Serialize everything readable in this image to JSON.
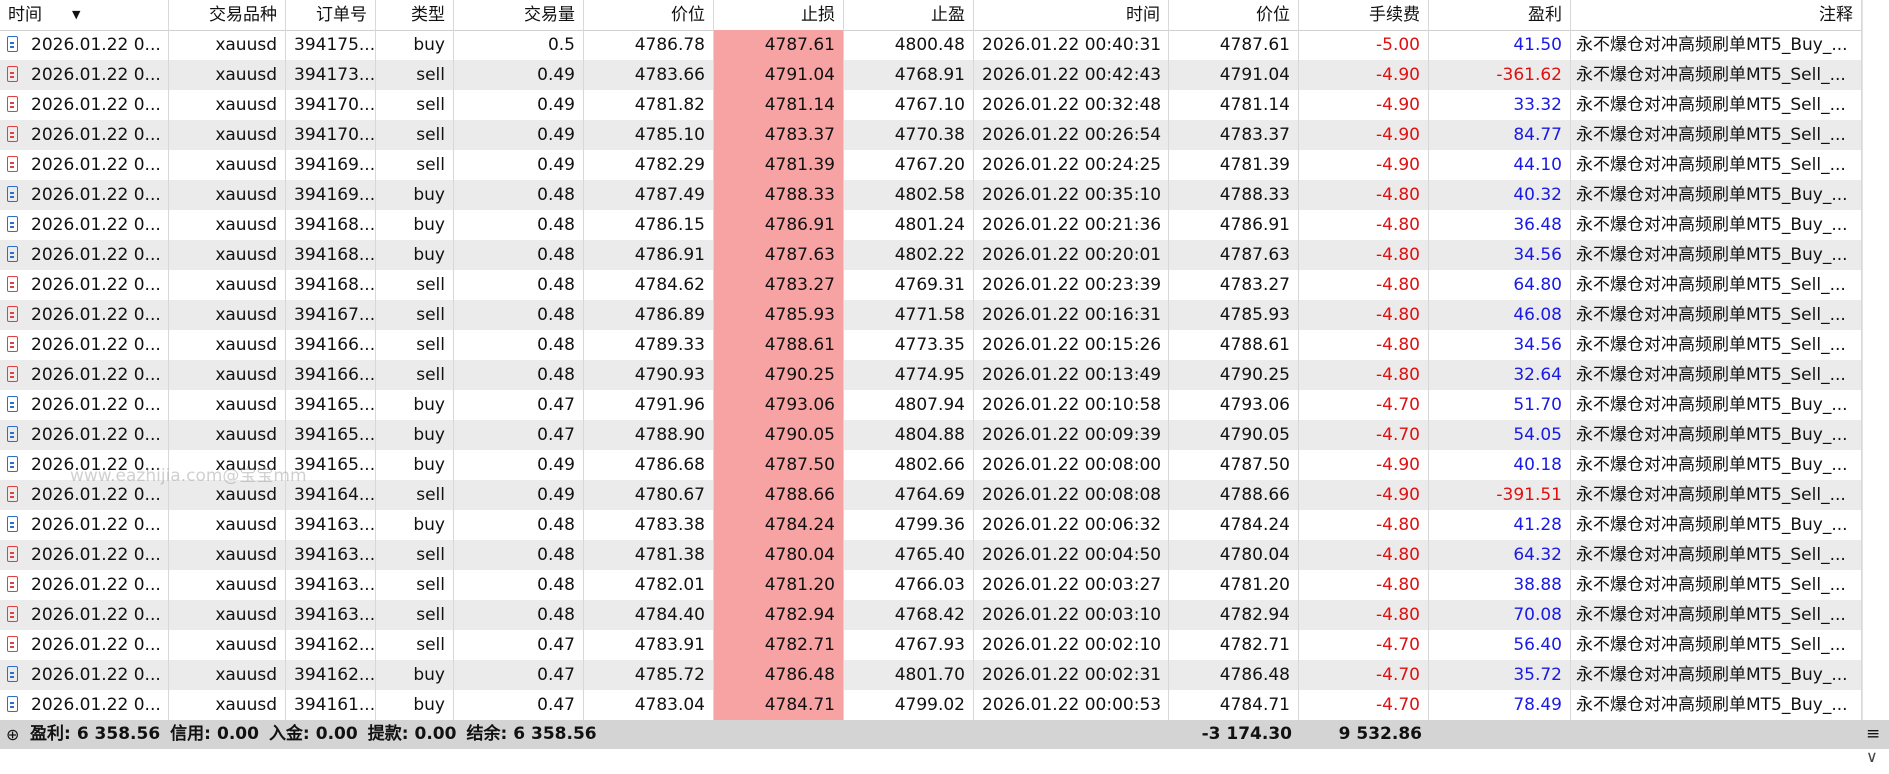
{
  "header": [
    "时间",
    "交易品种",
    "订单号",
    "类型",
    "交易量",
    "价位",
    "止损",
    "止盈",
    "时间",
    "价位",
    "手续费",
    "盈利",
    "注释"
  ],
  "rows": [
    [
      "2026.01.22 0...",
      "xauusd",
      "394175...",
      "buy",
      "0.5",
      "4786.78",
      "4787.61",
      "4800.48",
      "2026.01.22 00:40:31",
      "4787.61",
      "-5.00",
      "41.50",
      "永不爆仓对冲高频刷单MT5_Buy_..."
    ],
    [
      "2026.01.22 0...",
      "xauusd",
      "394173...",
      "sell",
      "0.49",
      "4783.66",
      "4791.04",
      "4768.91",
      "2026.01.22 00:42:43",
      "4791.04",
      "-4.90",
      "-361.62",
      "永不爆仓对冲高频刷单MT5_Sell_..."
    ],
    [
      "2026.01.22 0...",
      "xauusd",
      "394170...",
      "sell",
      "0.49",
      "4781.82",
      "4781.14",
      "4767.10",
      "2026.01.22 00:32:48",
      "4781.14",
      "-4.90",
      "33.32",
      "永不爆仓对冲高频刷单MT5_Sell_..."
    ],
    [
      "2026.01.22 0...",
      "xauusd",
      "394170...",
      "sell",
      "0.49",
      "4785.10",
      "4783.37",
      "4770.38",
      "2026.01.22 00:26:54",
      "4783.37",
      "-4.90",
      "84.77",
      "永不爆仓对冲高频刷单MT5_Sell_..."
    ],
    [
      "2026.01.22 0...",
      "xauusd",
      "394169...",
      "sell",
      "0.49",
      "4782.29",
      "4781.39",
      "4767.20",
      "2026.01.22 00:24:25",
      "4781.39",
      "-4.90",
      "44.10",
      "永不爆仓对冲高频刷单MT5_Sell_..."
    ],
    [
      "2026.01.22 0...",
      "xauusd",
      "394169...",
      "buy",
      "0.48",
      "4787.49",
      "4788.33",
      "4802.58",
      "2026.01.22 00:35:10",
      "4788.33",
      "-4.80",
      "40.32",
      "永不爆仓对冲高频刷单MT5_Buy_..."
    ],
    [
      "2026.01.22 0...",
      "xauusd",
      "394168...",
      "buy",
      "0.48",
      "4786.15",
      "4786.91",
      "4801.24",
      "2026.01.22 00:21:36",
      "4786.91",
      "-4.80",
      "36.48",
      "永不爆仓对冲高频刷单MT5_Buy_..."
    ],
    [
      "2026.01.22 0...",
      "xauusd",
      "394168...",
      "buy",
      "0.48",
      "4786.91",
      "4787.63",
      "4802.22",
      "2026.01.22 00:20:01",
      "4787.63",
      "-4.80",
      "34.56",
      "永不爆仓对冲高频刷单MT5_Buy_..."
    ],
    [
      "2026.01.22 0...",
      "xauusd",
      "394168...",
      "sell",
      "0.48",
      "4784.62",
      "4783.27",
      "4769.31",
      "2026.01.22 00:23:39",
      "4783.27",
      "-4.80",
      "64.80",
      "永不爆仓对冲高频刷单MT5_Sell_..."
    ],
    [
      "2026.01.22 0...",
      "xauusd",
      "394167...",
      "sell",
      "0.48",
      "4786.89",
      "4785.93",
      "4771.58",
      "2026.01.22 00:16:31",
      "4785.93",
      "-4.80",
      "46.08",
      "永不爆仓对冲高频刷单MT5_Sell_..."
    ],
    [
      "2026.01.22 0...",
      "xauusd",
      "394166...",
      "sell",
      "0.48",
      "4789.33",
      "4788.61",
      "4773.35",
      "2026.01.22 00:15:26",
      "4788.61",
      "-4.80",
      "34.56",
      "永不爆仓对冲高频刷单MT5_Sell_..."
    ],
    [
      "2026.01.22 0...",
      "xauusd",
      "394166...",
      "sell",
      "0.48",
      "4790.93",
      "4790.25",
      "4774.95",
      "2026.01.22 00:13:49",
      "4790.25",
      "-4.80",
      "32.64",
      "永不爆仓对冲高频刷单MT5_Sell_..."
    ],
    [
      "2026.01.22 0...",
      "xauusd",
      "394165...",
      "buy",
      "0.47",
      "4791.96",
      "4793.06",
      "4807.94",
      "2026.01.22 00:10:58",
      "4793.06",
      "-4.70",
      "51.70",
      "永不爆仓对冲高频刷单MT5_Buy_..."
    ],
    [
      "2026.01.22 0...",
      "xauusd",
      "394165...",
      "buy",
      "0.47",
      "4788.90",
      "4790.05",
      "4804.88",
      "2026.01.22 00:09:39",
      "4790.05",
      "-4.70",
      "54.05",
      "永不爆仓对冲高频刷单MT5_Buy_..."
    ],
    [
      "2026.01.22 0...",
      "xauusd",
      "394165...",
      "buy",
      "0.49",
      "4786.68",
      "4787.50",
      "4802.66",
      "2026.01.22 00:08:00",
      "4787.50",
      "-4.90",
      "40.18",
      "永不爆仓对冲高频刷单MT5_Buy_..."
    ],
    [
      "2026.01.22 0...",
      "xauusd",
      "394164...",
      "sell",
      "0.49",
      "4780.67",
      "4788.66",
      "4764.69",
      "2026.01.22 00:08:08",
      "4788.66",
      "-4.90",
      "-391.51",
      "永不爆仓对冲高频刷单MT5_Sell_..."
    ],
    [
      "2026.01.22 0...",
      "xauusd",
      "394163...",
      "buy",
      "0.48",
      "4783.38",
      "4784.24",
      "4799.36",
      "2026.01.22 00:06:32",
      "4784.24",
      "-4.80",
      "41.28",
      "永不爆仓对冲高频刷单MT5_Buy_..."
    ],
    [
      "2026.01.22 0...",
      "xauusd",
      "394163...",
      "sell",
      "0.48",
      "4781.38",
      "4780.04",
      "4765.40",
      "2026.01.22 00:04:50",
      "4780.04",
      "-4.80",
      "64.32",
      "永不爆仓对冲高频刷单MT5_Sell_..."
    ],
    [
      "2026.01.22 0...",
      "xauusd",
      "394163...",
      "sell",
      "0.48",
      "4782.01",
      "4781.20",
      "4766.03",
      "2026.01.22 00:03:27",
      "4781.20",
      "-4.80",
      "38.88",
      "永不爆仓对冲高频刷单MT5_Sell_..."
    ],
    [
      "2026.01.22 0...",
      "xauusd",
      "394163...",
      "sell",
      "0.48",
      "4784.40",
      "4782.94",
      "4768.42",
      "2026.01.22 00:03:10",
      "4782.94",
      "-4.80",
      "70.08",
      "永不爆仓对冲高频刷单MT5_Sell_..."
    ],
    [
      "2026.01.22 0...",
      "xauusd",
      "394162...",
      "sell",
      "0.47",
      "4783.91",
      "4782.71",
      "4767.93",
      "2026.01.22 00:02:10",
      "4782.71",
      "-4.70",
      "56.40",
      "永不爆仓对冲高频刷单MT5_Sell_..."
    ],
    [
      "2026.01.22 0...",
      "xauusd",
      "394162...",
      "buy",
      "0.47",
      "4785.72",
      "4786.48",
      "4801.70",
      "2026.01.22 00:02:31",
      "4786.48",
      "-4.70",
      "35.72",
      "永不爆仓对冲高频刷单MT5_Buy_..."
    ],
    [
      "2026.01.22 0...",
      "xauusd",
      "394161...",
      "buy",
      "0.47",
      "4783.04",
      "4784.71",
      "4799.02",
      "2026.01.22 00:00:53",
      "4784.71",
      "-4.70",
      "78.49",
      "永不爆仓对冲高频刷单MT5_Buy_..."
    ]
  ],
  "footer": {
    "summary": [
      {
        "label": "盈利:",
        "value": "6 358.56"
      },
      {
        "label": "信用:",
        "value": "0.00"
      },
      {
        "label": "入金:",
        "value": "0.00"
      },
      {
        "label": "提款:",
        "value": "0.00"
      },
      {
        "label": "结余:",
        "value": "6 358.56"
      }
    ],
    "commission_total": "-3 174.30",
    "profit_total": "9 532.86"
  },
  "watermark": "www.eazhijia.com@宝宝mm"
}
